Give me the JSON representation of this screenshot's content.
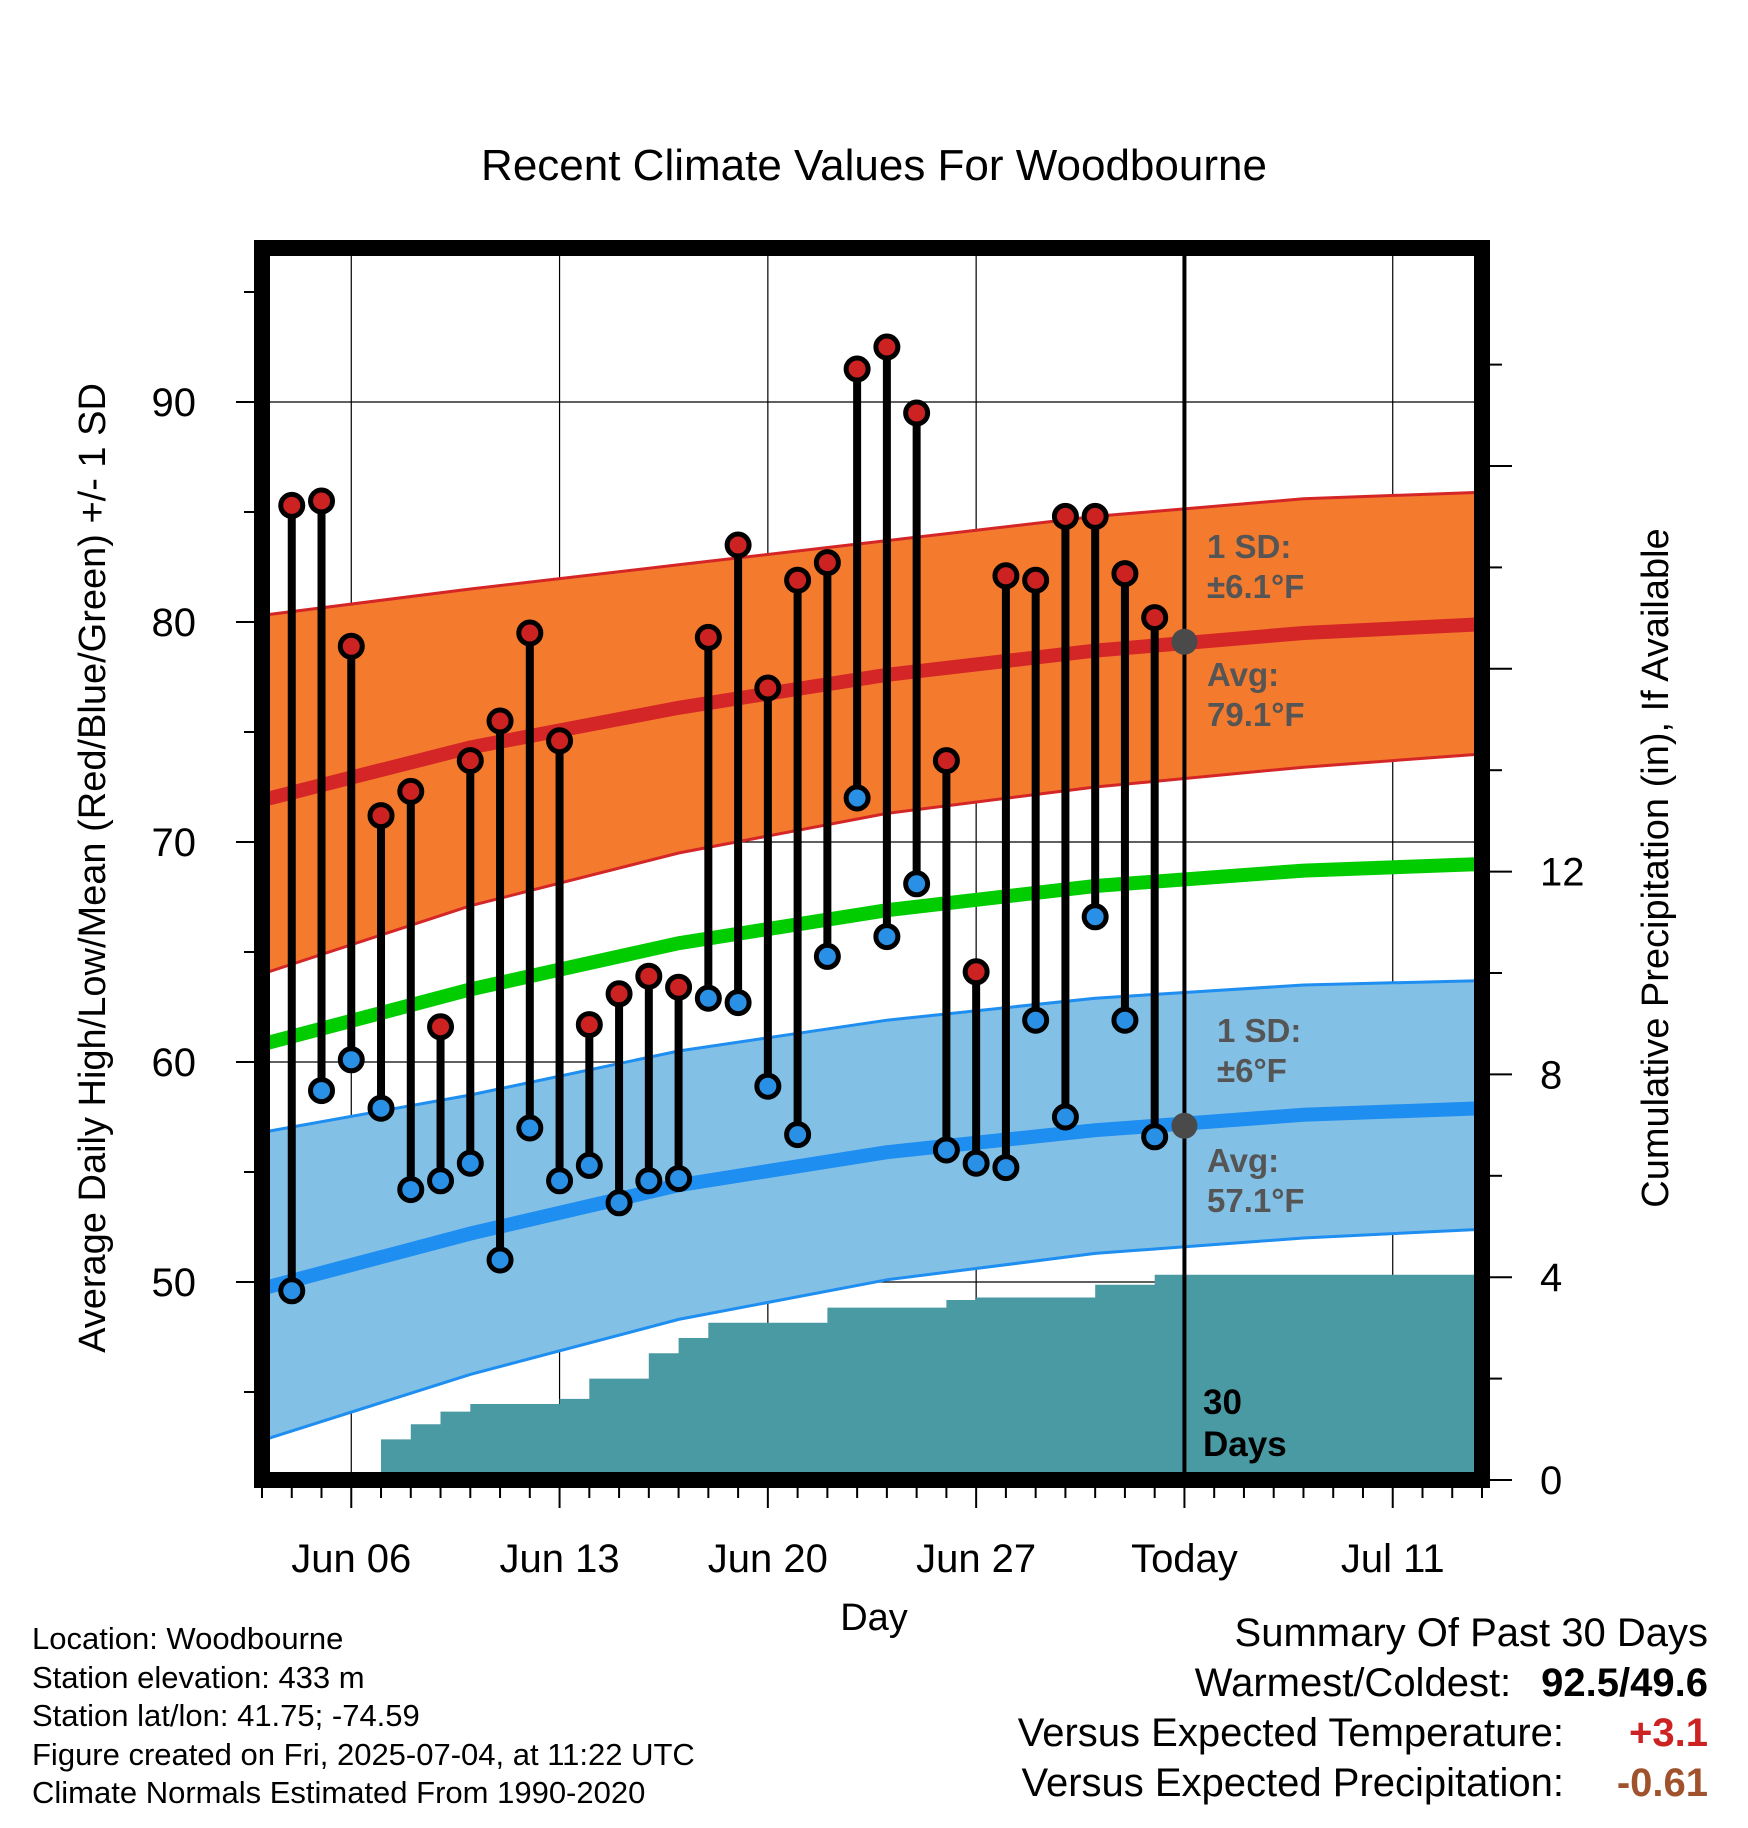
{
  "chart_data": {
    "type": "line",
    "title": "Recent Climate Values For Woodbourne",
    "xlabel": "Day",
    "ylabel": "Average Daily High/Low/Mean (Red/Blue/Green) +/- 1 SD",
    "y2label": "Cumulative Precipitation (in), If Available",
    "x_start_date": "2025-06-03",
    "x_end_date": "2025-07-14",
    "today_date": "2025-07-04",
    "ylim": [
      41,
      97
    ],
    "yticks": [
      50,
      60,
      70,
      80,
      90
    ],
    "y2lim": [
      0,
      24.3
    ],
    "y2ticks": [
      0,
      4,
      8,
      12
    ],
    "x_tick_labels": [
      {
        "date": "2025-06-06",
        "label": "Jun 06"
      },
      {
        "date": "2025-06-13",
        "label": "Jun 13"
      },
      {
        "date": "2025-06-20",
        "label": "Jun 20"
      },
      {
        "date": "2025-06-27",
        "label": "Jun 27"
      },
      {
        "date": "2025-07-04",
        "label": "Today"
      },
      {
        "date": "2025-07-11",
        "label": "Jul 11"
      }
    ],
    "grid": true,
    "daily_observations": {
      "dates": [
        "2025-06-04",
        "2025-06-05",
        "2025-06-06",
        "2025-06-07",
        "2025-06-08",
        "2025-06-09",
        "2025-06-10",
        "2025-06-11",
        "2025-06-12",
        "2025-06-13",
        "2025-06-14",
        "2025-06-15",
        "2025-06-16",
        "2025-06-17",
        "2025-06-18",
        "2025-06-19",
        "2025-06-20",
        "2025-06-21",
        "2025-06-22",
        "2025-06-23",
        "2025-06-24",
        "2025-06-25",
        "2025-06-26",
        "2025-06-27",
        "2025-06-28",
        "2025-06-29",
        "2025-06-30",
        "2025-07-01",
        "2025-07-02",
        "2025-07-03"
      ],
      "high": [
        85.3,
        85.5,
        78.9,
        71.2,
        72.3,
        61.6,
        73.7,
        75.5,
        79.5,
        74.6,
        61.7,
        63.1,
        63.9,
        63.4,
        79.3,
        83.5,
        77.0,
        81.9,
        82.7,
        91.5,
        92.5,
        89.5,
        73.7,
        64.1,
        82.1,
        81.9,
        84.8,
        84.8,
        82.2,
        80.2
      ],
      "low": [
        49.6,
        58.7,
        60.1,
        57.9,
        54.2,
        54.6,
        55.4,
        51.0,
        57.0,
        54.6,
        55.3,
        53.6,
        54.6,
        54.7,
        62.9,
        62.7,
        58.9,
        56.7,
        64.8,
        72.0,
        65.7,
        68.1,
        56.0,
        55.4,
        55.2,
        61.9,
        57.5,
        66.6,
        61.9,
        56.6
      ]
    },
    "normals": {
      "dates": [
        "2025-06-03",
        "2025-06-10",
        "2025-06-17",
        "2025-06-24",
        "2025-07-01",
        "2025-07-08",
        "2025-07-14"
      ],
      "high_avg": [
        71.9,
        74.3,
        76.1,
        77.6,
        78.7,
        79.5,
        79.9
      ],
      "high_upper": [
        80.3,
        81.5,
        82.6,
        83.7,
        84.8,
        85.6,
        85.9
      ],
      "high_lower": [
        64.0,
        67.1,
        69.5,
        71.3,
        72.5,
        73.4,
        74.0
      ],
      "mean_avg": [
        60.8,
        63.3,
        65.4,
        66.9,
        68.0,
        68.7,
        69.0
      ],
      "low_avg": [
        49.7,
        52.2,
        54.4,
        55.9,
        56.9,
        57.6,
        57.9
      ],
      "low_upper": [
        56.8,
        58.5,
        60.5,
        61.9,
        62.9,
        63.5,
        63.7
      ],
      "low_lower": [
        42.8,
        45.8,
        48.3,
        50.1,
        51.3,
        52.0,
        52.4
      ]
    },
    "cumulative_precipitation": {
      "dates": [
        "2025-06-03",
        "2025-06-04",
        "2025-06-05",
        "2025-06-06",
        "2025-06-07",
        "2025-06-08",
        "2025-06-09",
        "2025-06-10",
        "2025-06-11",
        "2025-06-12",
        "2025-06-13",
        "2025-06-14",
        "2025-06-15",
        "2025-06-16",
        "2025-06-17",
        "2025-06-18",
        "2025-06-19",
        "2025-06-20",
        "2025-06-21",
        "2025-06-22",
        "2025-06-23",
        "2025-06-24",
        "2025-06-25",
        "2025-06-26",
        "2025-06-27",
        "2025-06-28",
        "2025-06-29",
        "2025-06-30",
        "2025-07-01",
        "2025-07-02",
        "2025-07-03",
        "2025-07-04",
        "2025-07-14"
      ],
      "values": [
        0,
        0,
        0,
        0,
        0.8,
        1.1,
        1.35,
        1.5,
        1.5,
        1.5,
        1.6,
        2.0,
        2.0,
        2.5,
        2.8,
        3.1,
        3.1,
        3.1,
        3.1,
        3.4,
        3.4,
        3.4,
        3.4,
        3.55,
        3.6,
        3.6,
        3.6,
        3.6,
        3.85,
        3.85,
        4.05,
        4.05,
        4.05
      ]
    },
    "annotations": {
      "high_sd_label": "1 SD:",
      "high_sd_value": "±6.1°F",
      "high_avg_label": "Avg:",
      "high_avg_value": "79.1°F",
      "high_avg_marker_value": 79.1,
      "low_sd_label": "1 SD:",
      "low_sd_value": "±6°F",
      "low_avg_label": "Avg:",
      "low_avg_value": "57.1°F",
      "low_avg_marker_value": 57.1,
      "days_number": "30",
      "days_word": "Days"
    },
    "colors": {
      "high_band": "#f47a2e",
      "high_line": "#d42626",
      "low_band": "#82c0e6",
      "low_line": "#1e8ef0",
      "mean_line": "#00cc00",
      "precip": "#4a9aa3",
      "high_dot": "#cc2222",
      "low_dot": "#2a90e6",
      "annotation_text": "#555555",
      "avg_marker": "#4a4a4a"
    }
  },
  "footer": {
    "location": "Location: Woodbourne",
    "elevation": "Station elevation: 433 m",
    "latlon": "Station lat/lon: 41.75; -74.59",
    "created": "Figure created on Fri, 2025-07-04, at 11:22 UTC",
    "normals": "Climate Normals Estimated From 1990-2020"
  },
  "summary": {
    "title": "Summary Of Past 30 Days",
    "warmest_label": "Warmest/Coldest:",
    "warmest_value": "92.5/49.6",
    "temp_label": "Versus Expected Temperature:",
    "temp_value": "+3.1",
    "temp_color": "#cc2222",
    "precip_label": "Versus Expected Precipitation:",
    "precip_value": "-0.61",
    "precip_color": "#a0522d"
  }
}
